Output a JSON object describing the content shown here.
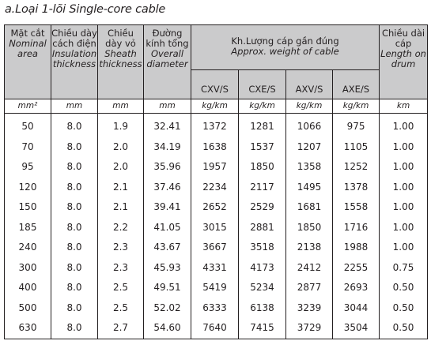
{
  "title": "a.Loại 1-lõi Single-core cable",
  "headers": {
    "area": {
      "vi": "Mặt cắt",
      "en": "Nominal area"
    },
    "insulation": {
      "vi": "Chiều dày cách điện",
      "en": "Insulation thickness"
    },
    "sheath": {
      "vi": "Chiều dày vỏ",
      "en": "Sheath thickness"
    },
    "diameter": {
      "vi": "Đường kính tổng",
      "en": "Overall diameter"
    },
    "weight": {
      "vi": "Kh.Lượng cáp gần đúng",
      "en": "Approx. weight of cable"
    },
    "length": {
      "vi": "Chiều dài cáp",
      "en": "Length on drum"
    },
    "sub": [
      "CXV/S",
      "CXE/S",
      "AXV/S",
      "AXE/S"
    ]
  },
  "units": [
    "mm²",
    "mm",
    "mm",
    "mm",
    "kg/km",
    "kg/km",
    "kg/km",
    "kg/km",
    "km"
  ],
  "rows": [
    [
      "50",
      "8.0",
      "1.9",
      "32.41",
      "1372",
      "1281",
      "1066",
      "975",
      "1.00"
    ],
    [
      "70",
      "8.0",
      "2.0",
      "34.19",
      "1638",
      "1537",
      "1207",
      "1105",
      "1.00"
    ],
    [
      "95",
      "8.0",
      "2.0",
      "35.96",
      "1957",
      "1850",
      "1358",
      "1252",
      "1.00"
    ],
    [
      "120",
      "8.0",
      "2.1",
      "37.46",
      "2234",
      "2117",
      "1495",
      "1378",
      "1.00"
    ],
    [
      "150",
      "8.0",
      "2.1",
      "39.41",
      "2652",
      "2529",
      "1681",
      "1558",
      "1.00"
    ],
    [
      "185",
      "8.0",
      "2.2",
      "41.05",
      "3015",
      "2881",
      "1850",
      "1716",
      "1.00"
    ],
    [
      "240",
      "8.0",
      "2.3",
      "43.67",
      "3667",
      "3518",
      "2138",
      "1988",
      "1.00"
    ],
    [
      "300",
      "8.0",
      "2.3",
      "45.93",
      "4331",
      "4173",
      "2412",
      "2255",
      "0.75"
    ],
    [
      "400",
      "8.0",
      "2.5",
      "49.51",
      "5419",
      "5234",
      "2877",
      "2693",
      "0.50"
    ],
    [
      "500",
      "8.0",
      "2.5",
      "52.02",
      "6333",
      "6138",
      "3239",
      "3044",
      "0.50"
    ],
    [
      "630",
      "8.0",
      "2.7",
      "54.60",
      "7640",
      "7415",
      "3729",
      "3504",
      "0.50"
    ]
  ]
}
